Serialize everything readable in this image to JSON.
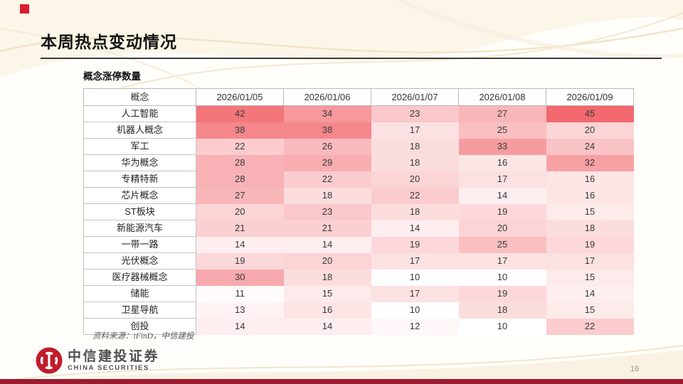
{
  "header": {
    "title": "本周热点变动情况"
  },
  "chart_data": {
    "type": "heatmap",
    "title": "概念涨停数量",
    "columns": [
      "概念",
      "2026/01/05",
      "2026/01/06",
      "2026/01/07",
      "2026/01/08",
      "2026/01/09"
    ],
    "rows": [
      {
        "label": "人工智能",
        "values": [
          42,
          34,
          23,
          27,
          45
        ]
      },
      {
        "label": "机器人概念",
        "values": [
          38,
          38,
          17,
          25,
          20
        ]
      },
      {
        "label": "军工",
        "values": [
          22,
          26,
          18,
          33,
          24
        ]
      },
      {
        "label": "华为概念",
        "values": [
          28,
          29,
          18,
          16,
          32
        ]
      },
      {
        "label": "专精特新",
        "values": [
          28,
          22,
          20,
          17,
          16
        ]
      },
      {
        "label": "芯片概念",
        "values": [
          27,
          18,
          22,
          14,
          16
        ]
      },
      {
        "label": "ST板块",
        "values": [
          20,
          23,
          18,
          19,
          15
        ]
      },
      {
        "label": "新能源汽车",
        "values": [
          21,
          21,
          14,
          20,
          18
        ]
      },
      {
        "label": "一带一路",
        "values": [
          14,
          14,
          19,
          25,
          19
        ]
      },
      {
        "label": "光伏概念",
        "values": [
          19,
          20,
          17,
          17,
          17
        ]
      },
      {
        "label": "医疗器械概念",
        "values": [
          30,
          18,
          10,
          10,
          15
        ]
      },
      {
        "label": "储能",
        "values": [
          11,
          15,
          17,
          19,
          14
        ]
      },
      {
        "label": "卫星导航",
        "values": [
          13,
          16,
          10,
          18,
          15
        ]
      },
      {
        "label": "创投",
        "values": [
          14,
          14,
          12,
          10,
          22
        ]
      }
    ],
    "color_scale": {
      "min_value": 10,
      "max_value": 45,
      "min_color": "#FFFFFF",
      "max_color": "#F2696F"
    },
    "legend": "none",
    "grid": "light-gray borders on header and label column only"
  },
  "footer": {
    "source": "资料来源：iFinD，中信建投",
    "brand_cn": "中信建投证券",
    "brand_en": "CHINA SECURITIES",
    "page_number": "16"
  },
  "colors": {
    "accent_red": "#DC1E32",
    "bottom_bar": "#9B1B2F",
    "logo_red": "#C01C2D",
    "wave_cream": "#F5EBD5"
  }
}
